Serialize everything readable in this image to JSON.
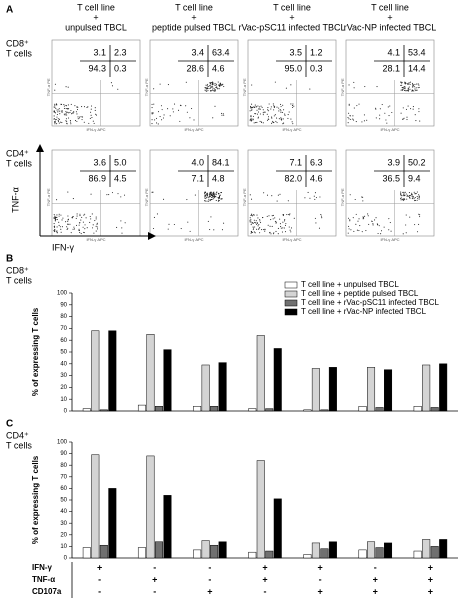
{
  "panel_a": {
    "label": "A",
    "columns": [
      [
        "T cell line",
        "+",
        "unpulsed TBCL"
      ],
      [
        "T cell line",
        "+",
        "peptide pulsed TBCL"
      ],
      [
        "T cell line",
        "+",
        "rVac-pSC11 infected TBCL"
      ],
      [
        "T cell line",
        "+",
        "rVac-NP infected TBCL"
      ]
    ],
    "rows": [
      {
        "label": [
          "CD8⁺",
          "T cells"
        ],
        "quadrants": [
          [
            "3.1",
            "2.3",
            "94.3",
            "0.3"
          ],
          [
            "3.4",
            "63.4",
            "28.6",
            "4.6"
          ],
          [
            "3.5",
            "1.2",
            "95.0",
            "0.3"
          ],
          [
            "4.1",
            "53.4",
            "28.1",
            "14.4"
          ]
        ]
      },
      {
        "label": [
          "CD4⁺",
          "T cells"
        ],
        "quadrants": [
          [
            "3.6",
            "5.0",
            "86.9",
            "4.5"
          ],
          [
            "4.0",
            "84.1",
            "7.1",
            "4.8"
          ],
          [
            "7.1",
            "6.3",
            "82.0",
            "4.6"
          ],
          [
            "3.9",
            "50.2",
            "36.5",
            "9.4"
          ]
        ]
      }
    ],
    "y_label": "TNF-α",
    "x_label": "IFN-γ",
    "plot_y_label": "TNF-α PE",
    "plot_x_label": "IFN-γ APC"
  },
  "chart_data": [
    {
      "type": "bar",
      "panel": "B",
      "subtitle": [
        "CD8⁺",
        "T cells"
      ],
      "y_label": "% of expressing T cells",
      "categories": [
        null,
        null,
        null,
        null,
        null,
        null,
        null
      ],
      "ylim": [
        0,
        100
      ],
      "yticks": [
        0,
        10,
        20,
        30,
        40,
        50,
        60,
        70,
        80,
        90,
        100
      ],
      "series": [
        {
          "name": "T cell line + unpulsed TBCL",
          "color": "#ffffff",
          "values": [
            2,
            5,
            4,
            2,
            1,
            4,
            4
          ]
        },
        {
          "name": "T cell line + peptide pulsed TBCL",
          "color": "#d4d4d4",
          "values": [
            68,
            65,
            39,
            64,
            36,
            37,
            39
          ]
        },
        {
          "name": "T cell line + rVac-pSC11 infected TBCL",
          "color": "#707070",
          "values": [
            1,
            4,
            4,
            2,
            1,
            3,
            3
          ]
        },
        {
          "name": "T cell line + rVac-NP infected TBCL",
          "color": "#000000",
          "values": [
            68,
            52,
            41,
            53,
            37,
            35,
            40
          ]
        }
      ]
    },
    {
      "type": "bar",
      "panel": "C",
      "subtitle": [
        "CD4⁺",
        "T cells"
      ],
      "y_label": "% of expressing T cells",
      "categories": [
        null,
        null,
        null,
        null,
        null,
        null,
        null
      ],
      "ylim": [
        0,
        100
      ],
      "yticks": [
        0,
        10,
        20,
        30,
        40,
        50,
        60,
        70,
        80,
        90,
        100
      ],
      "series": [
        {
          "name": "T cell line + unpulsed TBCL",
          "color": "#ffffff",
          "values": [
            9,
            9,
            7,
            5,
            3,
            7,
            6
          ]
        },
        {
          "name": "T cell line + peptide pulsed TBCL",
          "color": "#d4d4d4",
          "values": [
            89,
            88,
            15,
            84,
            13,
            14,
            16
          ]
        },
        {
          "name": "T cell line + rVac-pSC11 infected TBCL",
          "color": "#707070",
          "values": [
            11,
            14,
            11,
            6,
            8,
            9,
            10
          ]
        },
        {
          "name": "T cell line + rVac-NP infected TBCL",
          "color": "#000000",
          "values": [
            60,
            54,
            14,
            51,
            14,
            13,
            16
          ]
        }
      ],
      "marker_rows": [
        {
          "label": "IFN-γ",
          "signs": [
            "+",
            "-",
            "-",
            "+",
            "+",
            "-",
            "+"
          ]
        },
        {
          "label": "TNF-α",
          "signs": [
            "-",
            "+",
            "-",
            "+",
            "-",
            "+",
            "+"
          ]
        },
        {
          "label": "CD107a",
          "signs": [
            "-",
            "-",
            "+",
            "-",
            "+",
            "+",
            "+"
          ]
        }
      ]
    }
  ]
}
